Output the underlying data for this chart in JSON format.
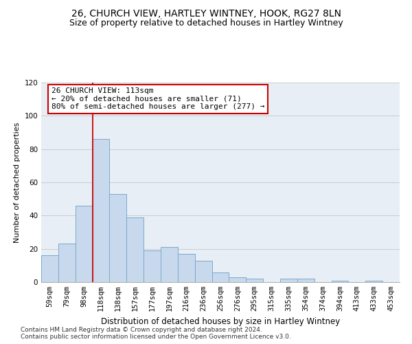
{
  "title1": "26, CHURCH VIEW, HARTLEY WINTNEY, HOOK, RG27 8LN",
  "title2": "Size of property relative to detached houses in Hartley Wintney",
  "xlabel": "Distribution of detached houses by size in Hartley Wintney",
  "ylabel": "Number of detached properties",
  "categories": [
    "59sqm",
    "79sqm",
    "98sqm",
    "118sqm",
    "138sqm",
    "157sqm",
    "177sqm",
    "197sqm",
    "216sqm",
    "236sqm",
    "256sqm",
    "276sqm",
    "295sqm",
    "315sqm",
    "335sqm",
    "354sqm",
    "374sqm",
    "394sqm",
    "413sqm",
    "433sqm",
    "453sqm"
  ],
  "values": [
    16,
    23,
    46,
    86,
    53,
    39,
    19,
    21,
    17,
    13,
    6,
    3,
    2,
    0,
    2,
    2,
    0,
    1,
    0,
    1,
    0
  ],
  "bar_color": "#c8d8ed",
  "bar_edge_color": "#7aaacb",
  "vline_xidx": 3,
  "vline_color": "#cc0000",
  "annotation_line1": "26 CHURCH VIEW: 113sqm",
  "annotation_line2": "← 20% of detached houses are smaller (71)",
  "annotation_line3": "80% of semi-detached houses are larger (277) →",
  "annotation_box_color": "#ffffff",
  "annotation_box_edge": "#cc0000",
  "ylim": [
    0,
    120
  ],
  "yticks": [
    0,
    20,
    40,
    60,
    80,
    100,
    120
  ],
  "grid_color": "#cccccc",
  "bg_color": "#e8eef5",
  "footer1": "Contains HM Land Registry data © Crown copyright and database right 2024.",
  "footer2": "Contains public sector information licensed under the Open Government Licence v3.0.",
  "title1_fontsize": 10,
  "title2_fontsize": 9,
  "xlabel_fontsize": 8.5,
  "ylabel_fontsize": 8,
  "tick_fontsize": 7.5,
  "annot_fontsize": 8,
  "footer_fontsize": 6.5
}
